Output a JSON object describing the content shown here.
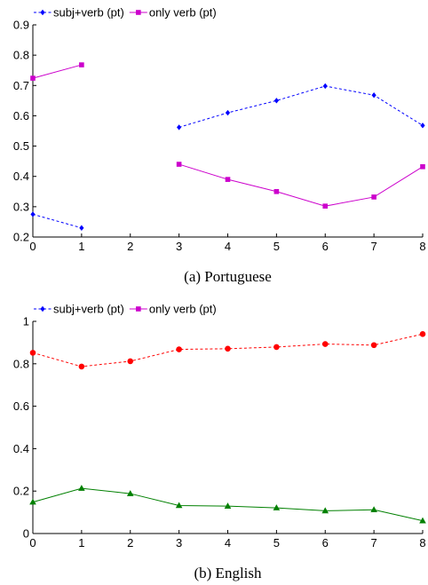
{
  "chart_data": [
    {
      "type": "line",
      "caption": "(a) Portuguese",
      "x": [
        0,
        1,
        2,
        3,
        4,
        5,
        6,
        7,
        8
      ],
      "xlim": [
        0,
        8
      ],
      "ylim": [
        0.2,
        0.9
      ],
      "xticks": [
        "0",
        "1",
        "2",
        "3",
        "4",
        "5",
        "6",
        "7",
        "8"
      ],
      "yticks": [
        "0.2",
        "0.3",
        "0.4",
        "0.5",
        "0.6",
        "0.7",
        "0.8",
        "0.9"
      ],
      "legend": "top-left",
      "series": [
        {
          "name": "subj+verb (pt)",
          "color": "#0000ff",
          "line": "dashed",
          "marker": "diamond",
          "values": [
            0.275,
            0.23,
            null,
            0.562,
            0.61,
            0.65,
            0.698,
            0.668,
            0.568
          ]
        },
        {
          "name": "only verb (pt)",
          "color": "#cc00cc",
          "line": "solid",
          "marker": "square",
          "values": [
            0.724,
            0.768,
            null,
            0.44,
            0.39,
            0.35,
            0.302,
            0.332,
            0.432
          ]
        }
      ]
    },
    {
      "type": "line",
      "caption": "(b) English",
      "x": [
        0,
        1,
        2,
        3,
        4,
        5,
        6,
        7,
        8
      ],
      "xlim": [
        0,
        8
      ],
      "ylim": [
        0,
        1
      ],
      "xticks": [
        "0",
        "1",
        "2",
        "3",
        "4",
        "5",
        "6",
        "7",
        "8"
      ],
      "yticks": [
        "0",
        "0.2",
        "0.4",
        "0.6",
        "0.8",
        "1"
      ],
      "legend": "top-left",
      "legend_entries": [
        {
          "name": "subj+verb (pt)",
          "color": "#0000ff",
          "line": "dashed",
          "marker": "diamond"
        },
        {
          "name": "only verb (pt)",
          "color": "#cc00cc",
          "line": "solid",
          "marker": "square"
        }
      ],
      "series": [
        {
          "color": "#ff0000",
          "line": "dashed",
          "marker": "circle",
          "values": [
            0.852,
            0.787,
            0.812,
            0.868,
            0.871,
            0.879,
            0.893,
            0.888,
            0.94
          ]
        },
        {
          "color": "#008000",
          "line": "solid",
          "marker": "triangle",
          "values": [
            0.148,
            0.213,
            0.188,
            0.132,
            0.129,
            0.121,
            0.107,
            0.112,
            0.06
          ]
        }
      ]
    }
  ]
}
